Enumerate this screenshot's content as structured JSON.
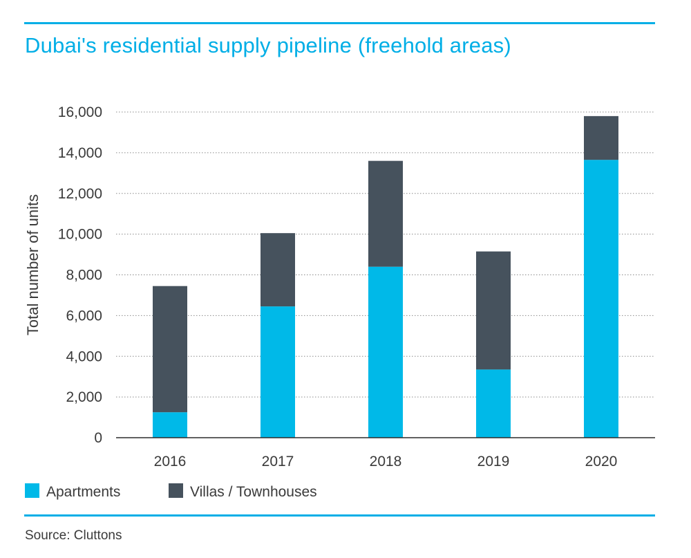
{
  "title": "Dubai's residential supply pipeline (freehold areas)",
  "source": "Source: Cluttons",
  "colors": {
    "accent": "#00aee6",
    "apartments": "#00b9e8",
    "villas": "#46525d"
  },
  "chart_data": {
    "type": "bar",
    "stacked": true,
    "title": "Dubai's residential supply pipeline (freehold areas)",
    "xlabel": "",
    "ylabel": "Total number of units",
    "ylim": [
      0,
      16000
    ],
    "yticks": [
      "0",
      "2,000",
      "4,000",
      "6,000",
      "8,000",
      "10,000",
      "12,000",
      "14,000",
      "16,000"
    ],
    "ytick_values": [
      0,
      2000,
      4000,
      6000,
      8000,
      10000,
      12000,
      14000,
      16000
    ],
    "categories": [
      "2016",
      "2017",
      "2018",
      "2019",
      "2020"
    ],
    "series": [
      {
        "name": "Apartments",
        "color": "#00b9e8",
        "values": [
          1250,
          6450,
          8400,
          3350,
          13650
        ]
      },
      {
        "name": "Villas / Townhouses",
        "color": "#46525d",
        "values": [
          6200,
          3600,
          5200,
          5800,
          2150
        ]
      }
    ],
    "grid": true,
    "legend": "bottom-left"
  }
}
